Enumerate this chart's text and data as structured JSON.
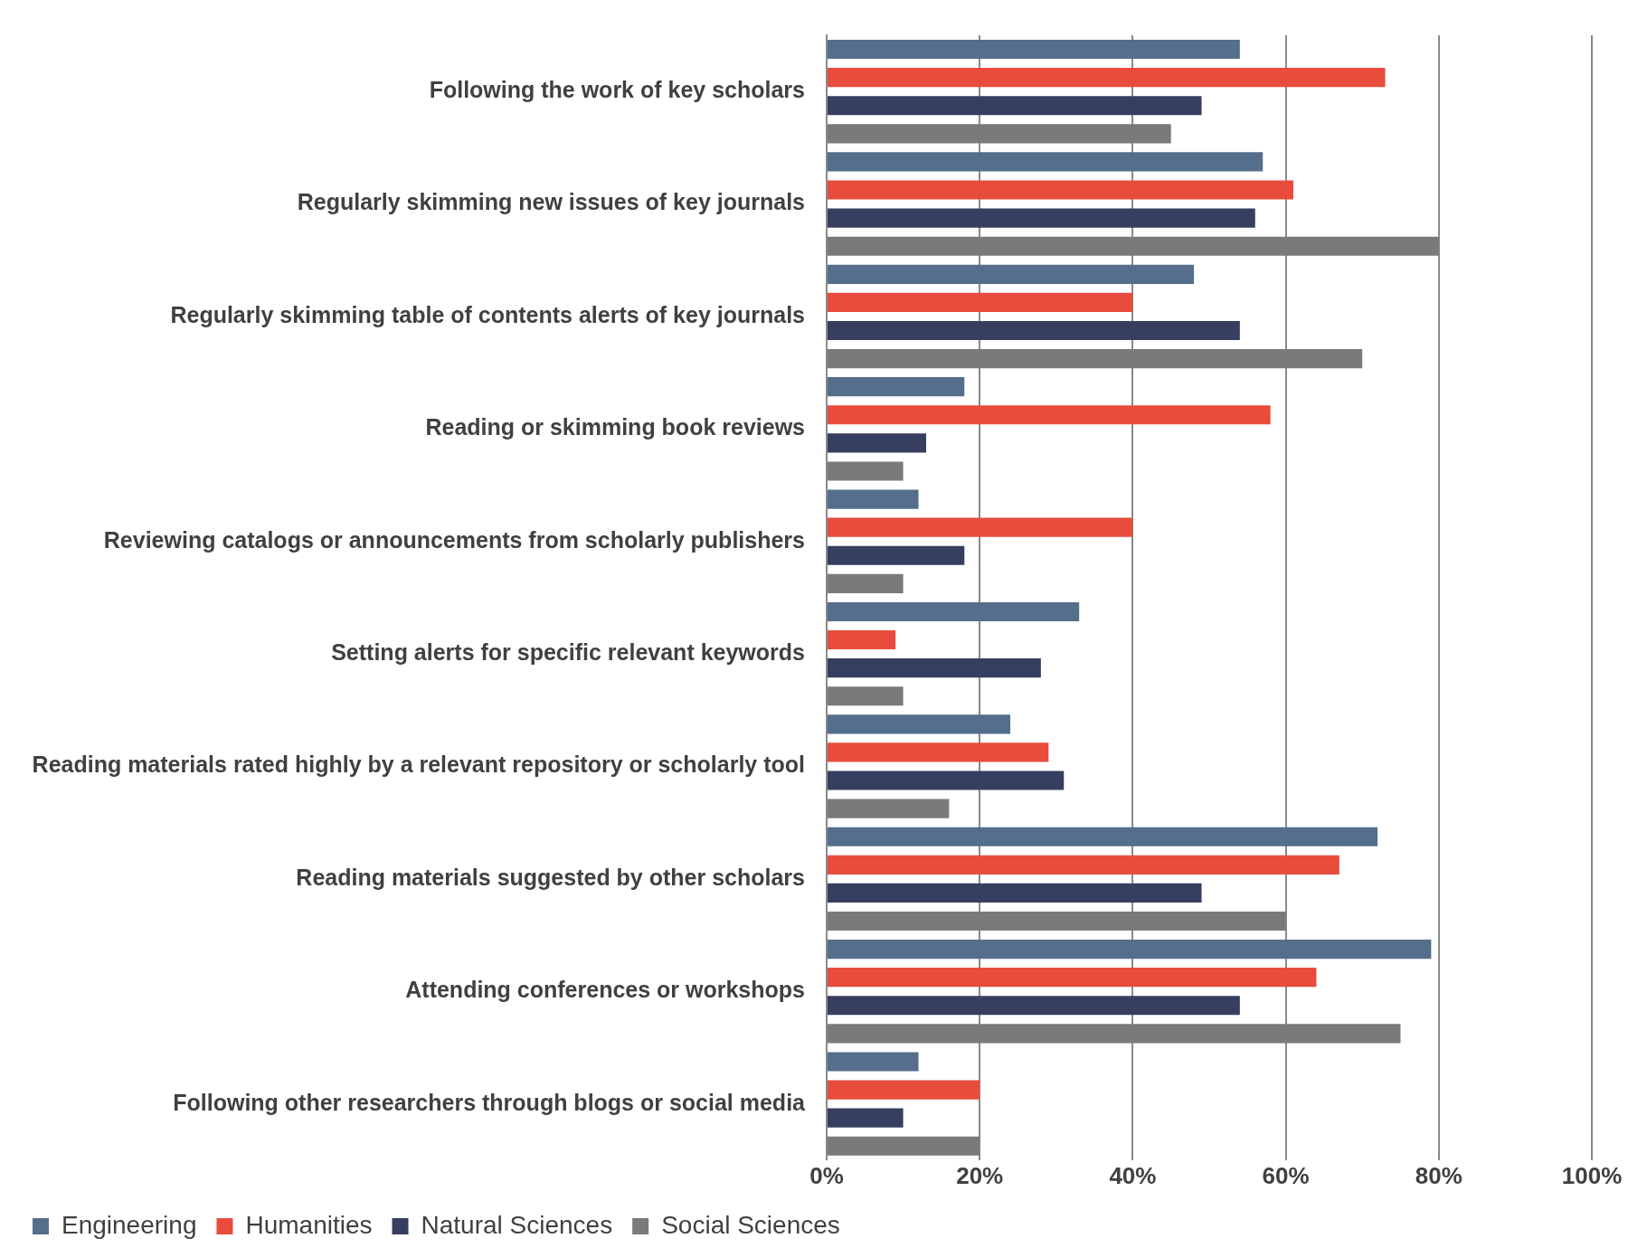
{
  "chart_data": {
    "type": "bar",
    "orientation": "horizontal",
    "categories": [
      "Following the work of key scholars",
      "Regularly skimming new issues of key journals",
      "Regularly skimming table of contents alerts of key journals",
      "Reading or skimming book reviews",
      "Reviewing catalogs or announcements from scholarly publishers",
      "Setting alerts for specific relevant keywords",
      "Reading materials rated highly by a relevant repository or scholarly tool",
      "Reading materials suggested by other scholars",
      "Attending conferences or workshops",
      "Following other researchers through blogs or social media"
    ],
    "series": [
      {
        "name": "Engineering",
        "color": "#546e8c",
        "values": [
          54,
          57,
          48,
          18,
          12,
          33,
          24,
          72,
          79,
          12
        ]
      },
      {
        "name": "Humanities",
        "color": "#e84c3d",
        "values": [
          73,
          61,
          40,
          58,
          40,
          9,
          29,
          67,
          64,
          20
        ]
      },
      {
        "name": "Natural Sciences",
        "color": "#363f60",
        "values": [
          49,
          56,
          54,
          13,
          18,
          28,
          31,
          49,
          54,
          10
        ]
      },
      {
        "name": "Social Sciences",
        "color": "#7a7a7c",
        "values": [
          45,
          80,
          70,
          10,
          10,
          10,
          16,
          60,
          75,
          20
        ]
      }
    ],
    "xlim": [
      0,
      100
    ],
    "xticks": [
      {
        "value": 0,
        "label": "0%"
      },
      {
        "value": 20,
        "label": "20%"
      },
      {
        "value": 40,
        "label": "40%"
      },
      {
        "value": 60,
        "label": "60%"
      },
      {
        "value": 80,
        "label": "80%"
      },
      {
        "value": 100,
        "label": "100%"
      }
    ],
    "grid": "x",
    "legend": "bottom left"
  }
}
